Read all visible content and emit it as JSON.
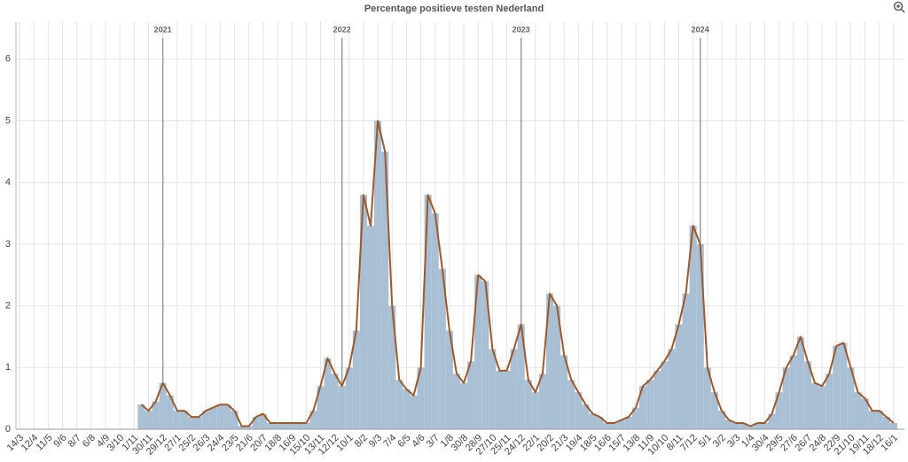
{
  "chart_data": {
    "type": "bar",
    "title": "Percentage positieve testen Nederland",
    "categories": [
      "14/3",
      null,
      "12/4",
      null,
      "11/5",
      null,
      "9/6",
      null,
      "8/7",
      null,
      "6/8",
      null,
      "4/9",
      null,
      "3/10",
      null,
      "1/11",
      null,
      "30/11",
      null,
      "29/12",
      null,
      "27/1",
      null,
      "25/2",
      null,
      "26/3",
      null,
      "24/4",
      null,
      "23/5",
      null,
      "21/6",
      null,
      "20/7",
      null,
      "18/8",
      null,
      "16/9",
      null,
      "15/10",
      null,
      "13/11",
      null,
      "12/12",
      null,
      "10/1",
      null,
      "8/2",
      null,
      "9/3",
      null,
      "7/4",
      null,
      "6/5",
      null,
      "4/6",
      null,
      "3/7",
      null,
      "1/8",
      null,
      "30/8",
      null,
      "28/9",
      null,
      "27/10",
      null,
      "25/11",
      null,
      "24/12",
      null,
      "22/1",
      null,
      "20/2",
      null,
      "21/3",
      null,
      "19/4",
      null,
      "18/5",
      null,
      "16/6",
      null,
      "15/7",
      null,
      "13/8",
      null,
      "11/9",
      null,
      "10/10",
      null,
      "8/11",
      null,
      "7/12",
      null,
      "5/1",
      null,
      "3/2",
      null,
      "3/3",
      null,
      "1/4",
      null,
      "30/4",
      null,
      "29/5",
      null,
      "27/6",
      null,
      "26/7",
      null,
      "24/8",
      null,
      "22/9",
      null,
      "21/10",
      null,
      "19/11",
      null,
      "18/12",
      null,
      "16/1",
      null
    ],
    "values": [
      null,
      null,
      null,
      null,
      null,
      null,
      null,
      null,
      null,
      null,
      null,
      null,
      null,
      null,
      null,
      null,
      null,
      0.4,
      0.3,
      0.45,
      0.75,
      0.55,
      0.3,
      0.3,
      0.2,
      0.2,
      0.3,
      0.35,
      0.4,
      0.4,
      0.3,
      0.05,
      0.05,
      0.2,
      0.25,
      0.1,
      0.1,
      0.1,
      0.1,
      0.1,
      0.1,
      0.3,
      0.7,
      1.15,
      0.9,
      0.7,
      1.0,
      1.6,
      3.8,
      3.3,
      5.0,
      4.5,
      2.0,
      0.8,
      0.65,
      0.55,
      1.0,
      3.8,
      3.5,
      2.6,
      1.6,
      0.9,
      0.75,
      1.1,
      2.5,
      2.4,
      1.3,
      0.95,
      0.95,
      1.3,
      1.7,
      0.8,
      0.6,
      0.9,
      2.2,
      2.0,
      1.2,
      0.8,
      0.6,
      0.4,
      0.25,
      0.2,
      0.1,
      0.1,
      0.15,
      0.2,
      0.35,
      0.7,
      0.8,
      0.95,
      1.1,
      1.3,
      1.7,
      2.2,
      3.3,
      3.0,
      1.0,
      0.6,
      0.3,
      0.15,
      0.1,
      0.1,
      0.05,
      0.1,
      0.1,
      0.25,
      0.6,
      1.0,
      1.2,
      1.5,
      1.1,
      0.75,
      0.7,
      0.9,
      1.35,
      1.4,
      1.0,
      0.6,
      0.5,
      0.3,
      0.3,
      0.2,
      0.1,
      null
    ],
    "color": "#a9bfd3",
    "line_color": "#9a5a2e",
    "ylim": [
      0,
      6.6
    ],
    "yticks": [
      0,
      1,
      2,
      3,
      4,
      5,
      6
    ],
    "grid": true,
    "year_markers": [
      {
        "label": "2021",
        "at": 20
      },
      {
        "label": "2022",
        "at": 45
      },
      {
        "label": "2023",
        "at": 70
      },
      {
        "label": "2024",
        "at": 95
      }
    ]
  }
}
